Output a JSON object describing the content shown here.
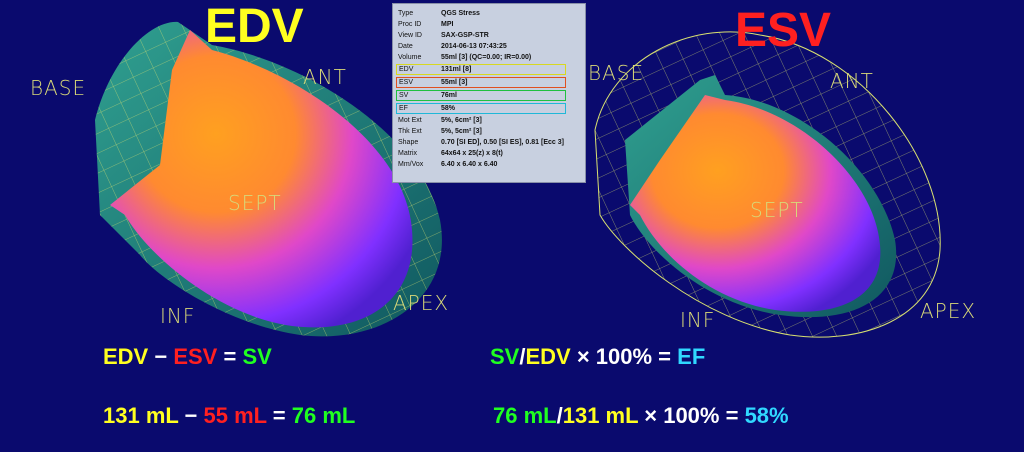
{
  "left_panel": {
    "title": "EDV",
    "labels": {
      "base": "BASE",
      "ant": "ANT",
      "sept": "SEPT",
      "inf": "INF",
      "apex": "APEX"
    }
  },
  "right_panel": {
    "title": "ESV",
    "labels": {
      "base": "BASE",
      "ant": "ANT",
      "sept": "SEPT",
      "inf": "INF",
      "apex": "APEX"
    }
  },
  "info_table": {
    "rows": [
      [
        "Type",
        "QGS Stress"
      ],
      [
        "Proc ID",
        "MPI"
      ],
      [
        "View ID",
        "SAX-GSP-STR"
      ],
      [
        "Date",
        "2014-06-13 07:43:25"
      ],
      [
        "Volume",
        "55ml [3] (QC=0.00; IR=0.00)"
      ],
      [
        "EDV",
        "131ml [8]"
      ],
      [
        "ESV",
        "55ml [3]"
      ],
      [
        "SV",
        "76ml"
      ],
      [
        "EF",
        "58%"
      ],
      [
        "Mot Ext",
        "5%, 6cm² [3]"
      ],
      [
        "Thk Ext",
        "5%, 5cm² [3]"
      ],
      [
        "Shape",
        "0.70 [SI ED], 0.50 [SI ES], 0.81 [Ecc 3]"
      ],
      [
        "Matrix",
        "64x64 x 25(z) x 8(t)"
      ],
      [
        "Mm/Vox",
        "6.40 x 6.40 x 6.40"
      ]
    ]
  },
  "equations": {
    "formula_left": [
      "EDV",
      " − ",
      "ESV",
      " = ",
      "SV"
    ],
    "formula_right": [
      "SV",
      "/",
      "EDV",
      " × 100% = ",
      "EF"
    ],
    "numbers_left": [
      "131 mL",
      " − ",
      "55 mL",
      " = ",
      "76 mL"
    ],
    "numbers_right": [
      "76 mL",
      "/",
      "131 mL",
      " × 100% = ",
      "58%"
    ]
  }
}
